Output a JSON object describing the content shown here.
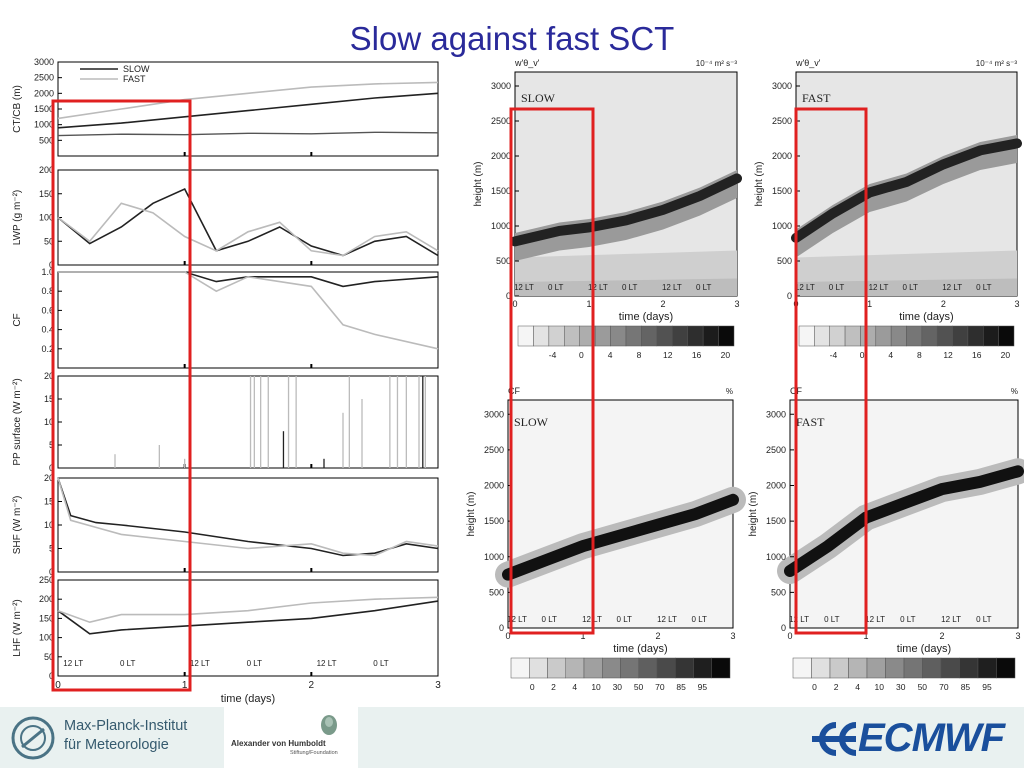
{
  "slide": {
    "title": "Slow against fast SCT"
  },
  "left_figure": {
    "legend": [
      "SLOW",
      "FAST"
    ],
    "panels": [
      {
        "ylabel": "CT/CB (m)",
        "yticks": [
          "3000",
          "2500",
          "2000",
          "1500",
          "1000",
          "500"
        ]
      },
      {
        "ylabel": "LWP (g m⁻²)",
        "yticks": [
          "200",
          "150",
          "100",
          "50",
          "0"
        ]
      },
      {
        "ylabel": "CF",
        "yticks": [
          "1.0",
          "0.8",
          "0.6",
          "0.4",
          "0.2"
        ]
      },
      {
        "ylabel": "PP surface (W m⁻²)",
        "yticks": [
          "20",
          "15",
          "10",
          "5",
          "0"
        ]
      },
      {
        "ylabel": "SHF (W m⁻²)",
        "yticks": [
          "20",
          "15",
          "10",
          "5",
          "0"
        ]
      },
      {
        "ylabel": "LHF (W m⁻²)",
        "yticks": [
          "250",
          "200",
          "150",
          "100",
          "50",
          "0"
        ]
      }
    ],
    "time_markers": [
      "12 LT",
      "0 LT",
      "12 LT",
      "0 LT",
      "12 LT",
      "0 LT"
    ],
    "xticks": [
      "0",
      "1",
      "2",
      "3"
    ],
    "xlabel": "time (days)"
  },
  "chart_data": [
    {
      "type": "line",
      "title": "",
      "xlabel": "time (days)",
      "ylabel": "CT/CB (m)",
      "xlim": [
        0,
        3
      ],
      "ylim": [
        0,
        3000
      ],
      "x": [
        0,
        0.5,
        1,
        1.5,
        2,
        2.5,
        3
      ],
      "series": [
        {
          "name": "SLOW",
          "values": [
            900,
            1050,
            1250,
            1450,
            1650,
            1850,
            2000
          ]
        },
        {
          "name": "FAST",
          "values": [
            1200,
            1500,
            1800,
            2000,
            2200,
            2300,
            2350
          ]
        }
      ]
    },
    {
      "type": "line",
      "title": "",
      "xlabel": "time (days)",
      "ylabel": "LWP (g m⁻²)",
      "xlim": [
        0,
        3
      ],
      "ylim": [
        0,
        200
      ],
      "x": [
        0,
        0.25,
        0.5,
        0.75,
        1,
        1.25,
        1.5,
        1.75,
        2,
        2.25,
        2.5,
        2.75,
        3
      ],
      "series": [
        {
          "name": "SLOW",
          "values": [
            100,
            45,
            80,
            130,
            160,
            30,
            50,
            80,
            40,
            20,
            50,
            60,
            20
          ]
        },
        {
          "name": "FAST",
          "values": [
            100,
            50,
            130,
            110,
            60,
            30,
            70,
            90,
            30,
            20,
            60,
            70,
            30
          ]
        }
      ]
    },
    {
      "type": "line",
      "title": "",
      "xlabel": "time (days)",
      "ylabel": "CF",
      "xlim": [
        0,
        3
      ],
      "ylim": [
        0,
        1
      ],
      "x": [
        0,
        0.5,
        1,
        1.25,
        1.5,
        2,
        2.25,
        2.5,
        3
      ],
      "series": [
        {
          "name": "SLOW",
          "values": [
            1.0,
            1.0,
            1.0,
            0.9,
            0.95,
            0.95,
            0.85,
            0.9,
            0.95
          ]
        },
        {
          "name": "FAST",
          "values": [
            1.0,
            1.0,
            1.0,
            0.8,
            0.95,
            0.85,
            0.45,
            0.35,
            0.2
          ]
        }
      ]
    },
    {
      "type": "line",
      "title": "",
      "xlabel": "time (days)",
      "ylabel": "SHF (W m⁻²)",
      "xlim": [
        0,
        3
      ],
      "ylim": [
        0,
        20
      ],
      "x": [
        0,
        0.1,
        0.3,
        0.5,
        1,
        1.5,
        2,
        2.25,
        2.5,
        2.75,
        3
      ],
      "series": [
        {
          "name": "SLOW",
          "values": [
            20,
            12,
            10.5,
            10,
            8.5,
            6.5,
            5,
            3.5,
            4,
            6,
            5
          ]
        },
        {
          "name": "FAST",
          "values": [
            20,
            11,
            9.5,
            8,
            6.5,
            5,
            6,
            4,
            3.5,
            6.5,
            5.5
          ]
        }
      ]
    },
    {
      "type": "line",
      "title": "",
      "xlabel": "time (days)",
      "ylabel": "LHF (W m⁻²)",
      "xlim": [
        0,
        3
      ],
      "ylim": [
        0,
        250
      ],
      "x": [
        0,
        0.25,
        0.5,
        1,
        1.5,
        2,
        2.5,
        3
      ],
      "series": [
        {
          "name": "SLOW",
          "values": [
            170,
            110,
            120,
            130,
            140,
            150,
            170,
            195
          ]
        },
        {
          "name": "FAST",
          "values": [
            170,
            140,
            160,
            160,
            170,
            190,
            200,
            205
          ]
        }
      ]
    }
  ],
  "right_figures": {
    "top_left": {
      "corner_left": "w'θ_v'",
      "corner_right": "10⁻⁴ m² s⁻³",
      "label": "SLOW"
    },
    "top_right": {
      "corner_left": "w'θ_v'",
      "corner_right": "10⁻⁴ m² s⁻³",
      "label": "FAST"
    },
    "bottom_left": {
      "corner_left": "CF",
      "corner_right": "%",
      "label": "SLOW"
    },
    "bottom_right": {
      "corner_left": "CF",
      "corner_right": "%",
      "label": "FAST"
    },
    "ylabel": "height (m)",
    "xlabel": "time (days)",
    "yticks": [
      "3000",
      "2500",
      "2000",
      "1500",
      "1000",
      "500",
      "0"
    ],
    "xticks": [
      "0",
      "1",
      "2",
      "3"
    ],
    "colorbar_flux": [
      "-4",
      "0",
      "4",
      "8",
      "12",
      "16",
      "20"
    ],
    "colorbar_cf": [
      "0",
      "2",
      "4",
      "10",
      "30",
      "50",
      "70",
      "85",
      "95"
    ]
  },
  "footer": {
    "mpi_line1": "Max-Planck-Institut",
    "mpi_line2": "für Meteorologie",
    "avh_name": "Alexander von Humboldt",
    "avh_sub": "Stiftung/Foundation",
    "ecmwf": "ECMWF"
  },
  "colors": {
    "title": "#2a2a9a",
    "slow": "#222222",
    "fast": "#bbbbbb",
    "highlight": "#e02020",
    "footer_bg": "#e9f1f0",
    "ecmwf": "#1a4f9c"
  }
}
